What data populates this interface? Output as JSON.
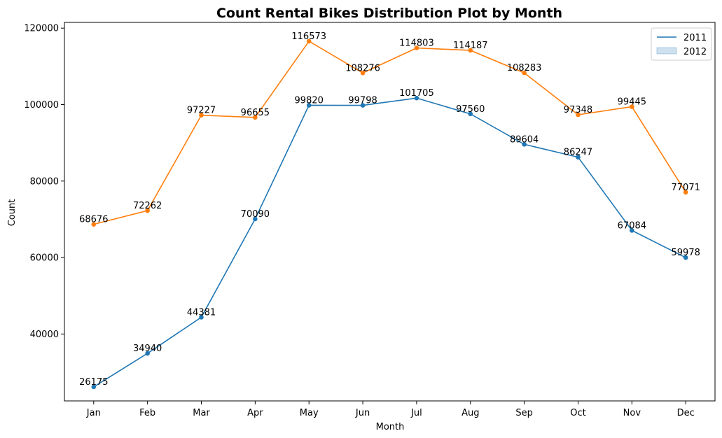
{
  "chart_data": {
    "type": "line",
    "title": "Count Rental Bikes Distribution Plot by Month",
    "xlabel": "Month",
    "ylabel": "Count",
    "categories": [
      "Jan",
      "Feb",
      "Mar",
      "Apr",
      "May",
      "Jun",
      "Jul",
      "Aug",
      "Sep",
      "Oct",
      "Nov",
      "Dec"
    ],
    "ylim": [
      22500,
      121500
    ],
    "yticks": [
      40000,
      60000,
      80000,
      100000,
      120000
    ],
    "grid": false,
    "legend_placement": "top-right",
    "legend_entries": [
      "2011",
      "2012"
    ],
    "series": [
      {
        "name": "2011",
        "color": "#1f77b4",
        "values": [
          26175,
          34940,
          44381,
          70090,
          99820,
          99798,
          101705,
          97560,
          89604,
          86247,
          67084,
          59978
        ]
      },
      {
        "name": "2012",
        "color": "#ff7f0e",
        "values": [
          68676,
          72262,
          97227,
          96655,
          116573,
          108276,
          114803,
          114187,
          108283,
          97348,
          99445,
          77071
        ]
      }
    ]
  }
}
